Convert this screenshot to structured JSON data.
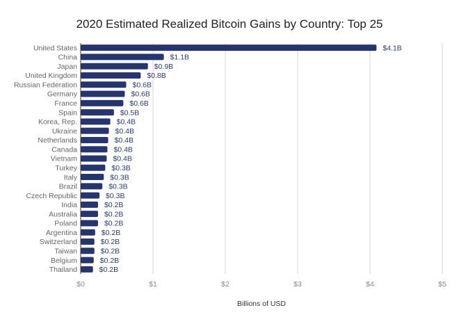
{
  "chart_data": {
    "type": "bar",
    "orientation": "horizontal",
    "title": "2020 Estimated Realized Bitcoin Gains by Country: Top 25",
    "xlabel": "Billions of USD",
    "ylabel": "",
    "xlim": [
      0,
      5
    ],
    "xticks": [
      "$0",
      "$1",
      "$2",
      "$3",
      "$4",
      "$5"
    ],
    "grid": true,
    "bar_color": "#27356e",
    "categories": [
      "United States",
      "China",
      "Japan",
      "United Kingdom",
      "Russian Federation",
      "Germany",
      "France",
      "Spain",
      "Korea, Rep.",
      "Ukraine",
      "Netherlands",
      "Canada",
      "Vietnam",
      "Turkey",
      "Italy",
      "Brazil",
      "Czech Republic",
      "India",
      "Australia",
      "Poland",
      "Argentina",
      "Switzerland",
      "Taiwan",
      "Belgium",
      "Thailand"
    ],
    "values": [
      4.09,
      1.15,
      0.93,
      0.83,
      0.63,
      0.61,
      0.59,
      0.46,
      0.41,
      0.39,
      0.38,
      0.37,
      0.36,
      0.34,
      0.32,
      0.3,
      0.26,
      0.24,
      0.24,
      0.24,
      0.2,
      0.19,
      0.19,
      0.18,
      0.17
    ],
    "data_labels": [
      "$4.1B",
      "$1.1B",
      "$0.9B",
      "$0.8B",
      "$0.6B",
      "$0.6B",
      "$0.6B",
      "$0.5B",
      "$0.4B",
      "$0.4B",
      "$0.4B",
      "$0.4B",
      "$0.4B",
      "$0.3B",
      "$0.3B",
      "$0.3B",
      "$0.3B",
      "$0.2B",
      "$0.2B",
      "$0.2B",
      "$0.2B",
      "$0.2B",
      "$0.2B",
      "$0.2B",
      "$0.2B"
    ]
  }
}
